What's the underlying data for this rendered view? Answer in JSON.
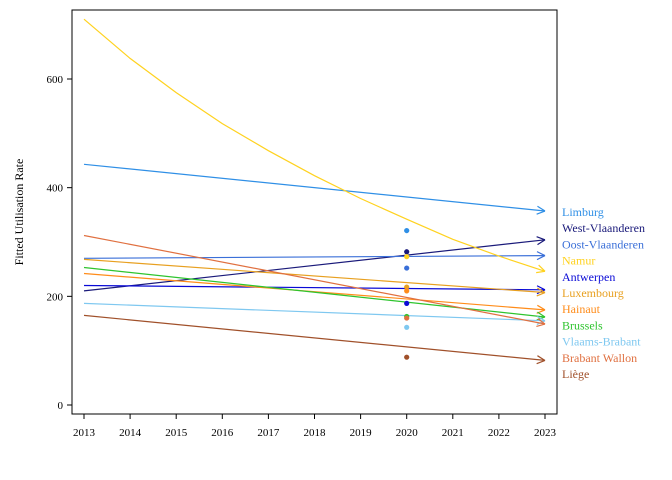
{
  "chart_data": {
    "type": "line",
    "title": "",
    "xlabel": "",
    "ylabel": "Fitted Utilisation Rate",
    "xlim": [
      2013,
      2023
    ],
    "ylim": [
      -20,
      720
    ],
    "xticks": [
      "2013",
      "2014",
      "2015",
      "2016",
      "2017",
      "2018",
      "2019",
      "2020",
      "2021",
      "2022",
      "2023"
    ],
    "yticks": [
      "0",
      "200",
      "400",
      "600"
    ],
    "grid": false,
    "legend": "right",
    "series": [
      {
        "name": "Limburg",
        "color": "#2f8fe6",
        "x": [
          2013,
          2023
        ],
        "y": [
          443,
          357
        ],
        "point": [
          2020,
          321
        ]
      },
      {
        "name": "West-Vlaanderen",
        "color": "#1a1a7a",
        "x": [
          2013,
          2023
        ],
        "y": [
          210,
          304
        ],
        "point": [
          2020,
          282
        ]
      },
      {
        "name": "Oost-Vlaanderen",
        "color": "#3a6fd8",
        "x": [
          2013,
          2023
        ],
        "y": [
          270,
          275
        ],
        "point": [
          2020,
          252
        ]
      },
      {
        "name": "Namur",
        "color": "#ffd21f",
        "x": [
          2013,
          2014,
          2015,
          2016,
          2017,
          2018,
          2019,
          2020,
          2021,
          2022,
          2023
        ],
        "y": [
          710,
          638,
          575,
          518,
          468,
          422,
          380,
          342,
          305,
          274,
          246
        ],
        "point": [
          2020,
          273
        ]
      },
      {
        "name": "Antwerpen",
        "color": "#0a0ad6",
        "x": [
          2013,
          2023
        ],
        "y": [
          220,
          212
        ],
        "point": [
          2020,
          187
        ]
      },
      {
        "name": "Luxembourg",
        "color": "#e8a020",
        "x": [
          2013,
          2023
        ],
        "y": [
          268,
          207
        ],
        "point": [
          2020,
          217
        ]
      },
      {
        "name": "Hainaut",
        "color": "#ff8c1a",
        "x": [
          2013,
          2023
        ],
        "y": [
          242,
          175
        ],
        "point": [
          2020,
          210
        ]
      },
      {
        "name": "Brussels",
        "color": "#2ec42e",
        "x": [
          2013,
          2023
        ],
        "y": [
          253,
          162
        ],
        "point": [
          2020,
          163
        ]
      },
      {
        "name": "Vlaams-Brabant",
        "color": "#7fc8f0",
        "x": [
          2013,
          2023
        ],
        "y": [
          187,
          155
        ],
        "point": [
          2020,
          143
        ]
      },
      {
        "name": "Brabant Wallon",
        "color": "#e07040",
        "x": [
          2013,
          2023
        ],
        "y": [
          312,
          149
        ],
        "point": [
          2020,
          160
        ]
      },
      {
        "name": "Liège",
        "color": "#a0502a",
        "x": [
          2013,
          2023
        ],
        "y": [
          165,
          82
        ],
        "point": [
          2020,
          88
        ]
      }
    ]
  }
}
